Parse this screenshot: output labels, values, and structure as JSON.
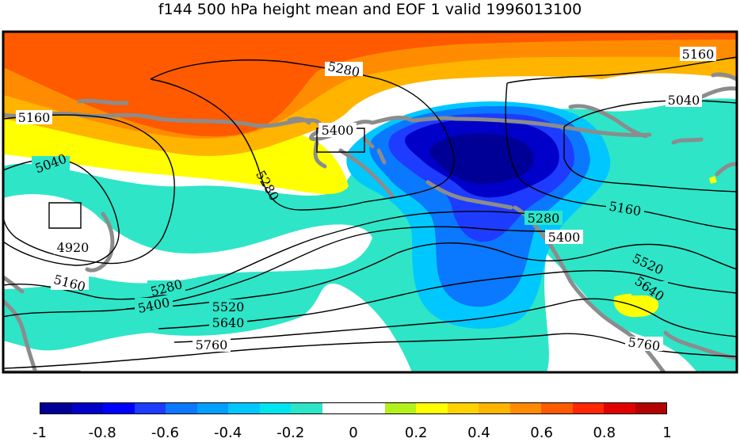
{
  "title": "f144 500 hPa height mean and EOF 1 valid 1996013100",
  "colors": {
    "levels": [
      "#000096",
      "#0000c8",
      "#0000ff",
      "#1e3cff",
      "#0a78ff",
      "#00a0ff",
      "#00c8ff",
      "#00e6f0",
      "#2ee5c8",
      "#ffffff",
      "#ffffff",
      "#b4f01e",
      "#ffff00",
      "#ffd200",
      "#ffb400",
      "#ff8c00",
      "#ff5a00",
      "#ff2800",
      "#e10000",
      "#b40000"
    ],
    "coast": "#8c8c8c",
    "contour": "#000000",
    "frame": "#000000"
  },
  "colorbar": {
    "tick_labels": [
      "-1",
      "-0.8",
      "-0.6",
      "-0.4",
      "-0.2",
      "0",
      "0.2",
      "0.4",
      "0.6",
      "0.8",
      "1"
    ],
    "range": [
      -1,
      1
    ]
  },
  "contour_labels": [
    "5280",
    "5160",
    "5160",
    "5040",
    "5400",
    "5040",
    "5280",
    "5160",
    "4920",
    "5280",
    "5400",
    "5160",
    "5280",
    "5400",
    "5520",
    "5640",
    "5520",
    "5640",
    "5760",
    "5760"
  ],
  "map_features": [
    "500 hPa height contours (m)",
    "EOF 1 shading",
    "coastlines"
  ]
}
